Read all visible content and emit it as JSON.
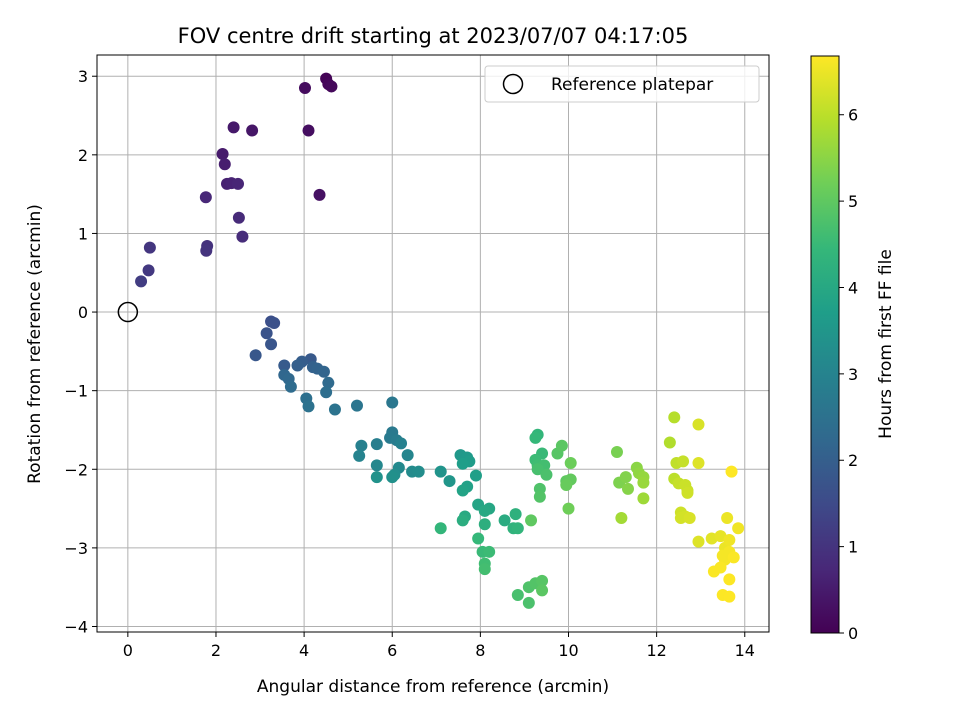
{
  "chart_data": {
    "type": "scatter",
    "title": "FOV centre drift starting at 2023/07/07 04:17:05",
    "xlabel": "Angular distance from reference (arcmin)",
    "ylabel": "Rotation from reference (arcmin)",
    "xlim": [
      -0.7,
      14.55
    ],
    "ylim": [
      -4.07,
      3.27
    ],
    "xticks": [
      0,
      2,
      4,
      6,
      8,
      10,
      12,
      14
    ],
    "yticks": [
      -4,
      -3,
      -2,
      -1,
      0,
      1,
      2,
      3
    ],
    "xtick_labels": [
      "0",
      "2",
      "4",
      "6",
      "8",
      "10",
      "12",
      "14"
    ],
    "ytick_labels": [
      "−4",
      "−3",
      "−2",
      "−1",
      "0",
      "1",
      "2",
      "3"
    ],
    "grid": true,
    "legend": {
      "position": "top-right",
      "entries": [
        "Reference platepar"
      ]
    },
    "reference": {
      "x": 0,
      "y": 0
    },
    "colorbar": {
      "label": "Hours from first FF file",
      "colormap": "viridis",
      "range": [
        0,
        6.68
      ],
      "ticks": [
        0,
        1,
        2,
        3,
        4,
        5,
        6
      ],
      "tick_labels": [
        "0",
        "1",
        "2",
        "3",
        "4",
        "5",
        "6"
      ]
    },
    "points": [
      [
        4.5,
        2.97,
        0.05
      ],
      [
        4.55,
        2.9,
        0.1
      ],
      [
        4.62,
        2.87,
        0.15
      ],
      [
        4.02,
        2.85,
        0.2
      ],
      [
        4.1,
        2.31,
        0.25
      ],
      [
        4.35,
        1.49,
        0.3
      ],
      [
        2.82,
        2.31,
        0.4
      ],
      [
        2.4,
        2.35,
        0.45
      ],
      [
        2.15,
        2.01,
        0.5
      ],
      [
        2.2,
        1.88,
        0.55
      ],
      [
        2.25,
        1.63,
        0.6
      ],
      [
        2.35,
        1.64,
        0.65
      ],
      [
        2.5,
        1.63,
        0.7
      ],
      [
        1.77,
        1.46,
        0.75
      ],
      [
        2.52,
        1.2,
        0.8
      ],
      [
        2.6,
        0.96,
        0.85
      ],
      [
        1.8,
        0.84,
        0.95
      ],
      [
        1.78,
        0.78,
        1.0
      ],
      [
        0.5,
        0.82,
        1.05
      ],
      [
        0.47,
        0.53,
        1.1
      ],
      [
        0.3,
        0.39,
        1.2
      ],
      [
        3.25,
        -0.12,
        1.6
      ],
      [
        3.32,
        -0.14,
        1.65
      ],
      [
        3.15,
        -0.27,
        1.7
      ],
      [
        3.25,
        -0.41,
        1.75
      ],
      [
        2.9,
        -0.55,
        1.8
      ],
      [
        4.15,
        -0.6,
        1.85
      ],
      [
        3.55,
        -0.68,
        1.9
      ],
      [
        3.95,
        -0.63,
        1.95
      ],
      [
        3.85,
        -0.68,
        2.0
      ],
      [
        4.2,
        -0.7,
        2.05
      ],
      [
        4.3,
        -0.72,
        2.1
      ],
      [
        4.45,
        -0.76,
        2.15
      ],
      [
        3.55,
        -0.8,
        2.2
      ],
      [
        3.65,
        -0.85,
        2.25
      ],
      [
        4.55,
        -0.9,
        2.3
      ],
      [
        3.7,
        -0.95,
        2.35
      ],
      [
        4.5,
        -1.02,
        2.4
      ],
      [
        4.05,
        -1.1,
        2.45
      ],
      [
        4.1,
        -1.2,
        2.5
      ],
      [
        4.7,
        -1.24,
        2.55
      ],
      [
        5.2,
        -1.19,
        2.6
      ],
      [
        6.0,
        -1.15,
        2.65
      ],
      [
        6.0,
        -1.53,
        2.7
      ],
      [
        5.95,
        -1.6,
        2.75
      ],
      [
        6.1,
        -1.63,
        2.8
      ],
      [
        5.65,
        -1.68,
        2.85
      ],
      [
        5.3,
        -1.7,
        2.9
      ],
      [
        6.2,
        -1.67,
        2.95
      ],
      [
        5.25,
        -1.83,
        3.0
      ],
      [
        6.35,
        -1.82,
        3.05
      ],
      [
        5.65,
        -1.95,
        3.1
      ],
      [
        6.15,
        -1.98,
        3.15
      ],
      [
        6.45,
        -2.03,
        3.2
      ],
      [
        6.6,
        -2.03,
        3.25
      ],
      [
        6.05,
        -2.07,
        3.3
      ],
      [
        6.0,
        -2.1,
        3.35
      ],
      [
        5.65,
        -2.1,
        3.4
      ],
      [
        7.1,
        -2.03,
        3.45
      ],
      [
        7.3,
        -2.15,
        3.5
      ],
      [
        7.55,
        -1.82,
        3.55
      ],
      [
        7.7,
        -1.85,
        3.6
      ],
      [
        7.75,
        -1.9,
        3.65
      ],
      [
        7.6,
        -1.93,
        3.7
      ],
      [
        7.9,
        -2.08,
        3.75
      ],
      [
        7.7,
        -2.22,
        3.8
      ],
      [
        7.6,
        -2.27,
        3.85
      ],
      [
        7.95,
        -2.45,
        3.9
      ],
      [
        8.2,
        -2.5,
        3.95
      ],
      [
        8.1,
        -2.53,
        4.0
      ],
      [
        7.65,
        -2.6,
        4.05
      ],
      [
        8.55,
        -2.65,
        4.1
      ],
      [
        7.6,
        -2.65,
        4.15
      ],
      [
        8.1,
        -2.7,
        4.2
      ],
      [
        8.8,
        -2.57,
        4.25
      ],
      [
        8.75,
        -2.75,
        4.3
      ],
      [
        8.85,
        -2.75,
        4.35
      ],
      [
        7.1,
        -2.75,
        4.4
      ],
      [
        7.95,
        -2.88,
        4.45
      ],
      [
        8.05,
        -3.05,
        4.5
      ],
      [
        8.2,
        -3.05,
        4.55
      ],
      [
        8.1,
        -3.2,
        4.6
      ],
      [
        8.1,
        -3.27,
        4.65
      ],
      [
        8.85,
        -3.6,
        4.7
      ],
      [
        9.1,
        -3.7,
        4.75
      ],
      [
        9.1,
        -3.5,
        4.8
      ],
      [
        9.25,
        -3.45,
        4.85
      ],
      [
        9.4,
        -3.42,
        4.9
      ],
      [
        9.4,
        -3.54,
        4.95
      ],
      [
        9.15,
        -2.65,
        5.0
      ],
      [
        9.3,
        -1.56,
        4.4
      ],
      [
        9.25,
        -1.6,
        4.45
      ],
      [
        9.4,
        -1.8,
        4.5
      ],
      [
        9.25,
        -1.88,
        4.55
      ],
      [
        9.3,
        -1.95,
        4.6
      ],
      [
        9.45,
        -1.95,
        4.65
      ],
      [
        9.3,
        -2.0,
        4.7
      ],
      [
        9.5,
        -2.07,
        4.75
      ],
      [
        9.35,
        -2.25,
        4.8
      ],
      [
        9.35,
        -2.35,
        4.85
      ],
      [
        9.75,
        -1.8,
        4.9
      ],
      [
        9.85,
        -1.7,
        4.95
      ],
      [
        9.95,
        -2.15,
        5.0
      ],
      [
        10.05,
        -2.13,
        5.05
      ],
      [
        9.95,
        -2.2,
        5.1
      ],
      [
        10.05,
        -1.92,
        5.15
      ],
      [
        10.0,
        -2.5,
        5.2
      ],
      [
        11.1,
        -1.78,
        5.3
      ],
      [
        11.15,
        -2.17,
        5.35
      ],
      [
        11.3,
        -2.1,
        5.4
      ],
      [
        11.35,
        -2.25,
        5.45
      ],
      [
        11.55,
        -1.98,
        5.5
      ],
      [
        11.6,
        -2.05,
        5.55
      ],
      [
        11.7,
        -2.1,
        5.6
      ],
      [
        11.7,
        -2.17,
        5.65
      ],
      [
        11.7,
        -2.37,
        5.7
      ],
      [
        11.2,
        -2.62,
        5.75
      ],
      [
        12.3,
        -1.66,
        5.9
      ],
      [
        12.4,
        -1.34,
        5.95
      ],
      [
        12.4,
        -2.12,
        6.0
      ],
      [
        12.45,
        -1.92,
        6.05
      ],
      [
        12.6,
        -1.9,
        6.1
      ],
      [
        12.5,
        -2.18,
        6.1
      ],
      [
        12.65,
        -2.2,
        6.15
      ],
      [
        12.7,
        -2.27,
        6.15
      ],
      [
        12.7,
        -2.3,
        6.2
      ],
      [
        12.55,
        -2.55,
        6.2
      ],
      [
        12.55,
        -2.62,
        6.25
      ],
      [
        12.65,
        -2.6,
        6.25
      ],
      [
        12.75,
        -2.62,
        6.3
      ],
      [
        12.95,
        -1.43,
        6.3
      ],
      [
        12.95,
        -1.92,
        6.35
      ],
      [
        12.95,
        -2.92,
        6.35
      ],
      [
        13.25,
        -2.88,
        6.4
      ],
      [
        13.45,
        -2.85,
        6.45
      ],
      [
        13.6,
        -2.62,
        6.5
      ],
      [
        13.55,
        -3.0,
        6.5
      ],
      [
        13.65,
        -2.9,
        6.55
      ],
      [
        13.85,
        -2.75,
        6.55
      ],
      [
        13.5,
        -3.1,
        6.6
      ],
      [
        13.65,
        -3.05,
        6.6
      ],
      [
        13.55,
        -3.15,
        6.6
      ],
      [
        13.75,
        -3.12,
        6.65
      ],
      [
        13.3,
        -3.3,
        6.65
      ],
      [
        13.45,
        -3.25,
        6.65
      ],
      [
        13.65,
        -3.4,
        6.67
      ],
      [
        13.5,
        -3.6,
        6.67
      ],
      [
        13.65,
        -3.62,
        6.68
      ],
      [
        13.7,
        -2.03,
        6.68
      ]
    ]
  }
}
